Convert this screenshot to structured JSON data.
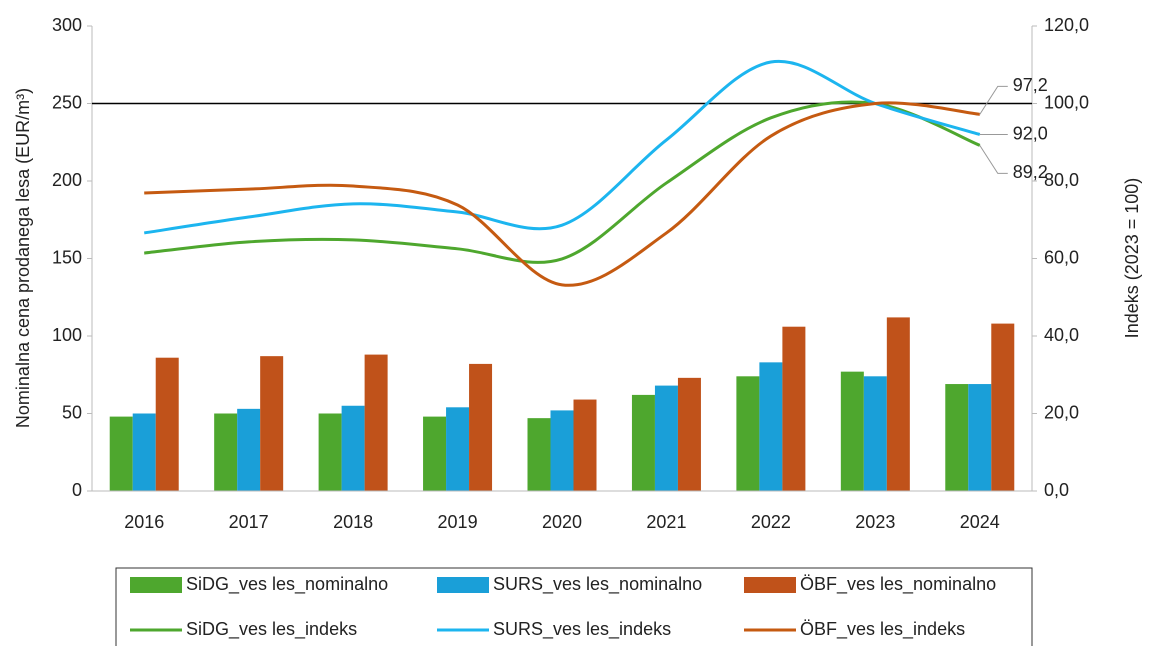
{
  "chart_data": {
    "type": "bar_line",
    "y_label": "Nominalna cena prodanega lesa (EUR/m³)",
    "y2_label": "Indeks (2023 = 100)",
    "categories": [
      "2016",
      "2017",
      "2018",
      "2019",
      "2020",
      "2021",
      "2022",
      "2023",
      "2024"
    ],
    "ylim": [
      0,
      300
    ],
    "yticks": [
      0,
      50,
      100,
      150,
      200,
      250,
      300
    ],
    "y2lim": [
      0,
      120
    ],
    "y2ticks": [
      {
        "value": 0,
        "label": "0,0"
      },
      {
        "value": 20,
        "label": "20,0"
      },
      {
        "value": 40,
        "label": "40,0"
      },
      {
        "value": 60,
        "label": "60,0"
      },
      {
        "value": 80,
        "label": "80,0"
      },
      {
        "value": 100,
        "label": "100,0"
      },
      {
        "value": 120,
        "label": "120,0"
      }
    ],
    "hline": 250,
    "series": [
      {
        "name": "SiDG_ves les_nominalno",
        "type": "bar",
        "color": "#4ea72e",
        "values": [
          48,
          50,
          50,
          48,
          47,
          62,
          74,
          77,
          69
        ]
      },
      {
        "name": "SURS_ves les_nominalno",
        "type": "bar",
        "color": "#1a9fd8",
        "values": [
          50,
          53,
          55,
          54,
          52,
          68,
          83,
          74,
          69
        ]
      },
      {
        "name": "ÖBF_ves les_nominalno",
        "type": "bar",
        "color": "#c0521a",
        "values": [
          86,
          87,
          88,
          82,
          59,
          73,
          106,
          112,
          108
        ]
      },
      {
        "name": "SiDG_ves les_indeks",
        "type": "line",
        "axis": "y2",
        "color": "#4ea72e",
        "values": [
          61.4,
          64.3,
          64.8,
          62.5,
          59.9,
          79.5,
          96.3,
          100,
          89.2
        ],
        "value_labels": [
          null,
          null,
          null,
          null,
          null,
          null,
          null,
          null,
          "89,2"
        ]
      },
      {
        "name": "SURS_ves les_indeks",
        "type": "line",
        "axis": "y2",
        "color": "#1cb5ef",
        "values": [
          66.6,
          70.7,
          74.1,
          72,
          68.6,
          90.6,
          110.7,
          100,
          92.0
        ],
        "value_labels": [
          null,
          null,
          null,
          null,
          null,
          null,
          null,
          null,
          "92,0"
        ]
      },
      {
        "name": "ÖBF_ves les_indeks",
        "type": "line",
        "axis": "y2",
        "color": "#c55a11",
        "values": [
          76.9,
          77.9,
          78.7,
          73.8,
          53.2,
          66.6,
          91.6,
          100,
          97.2
        ],
        "value_labels": [
          null,
          null,
          null,
          null,
          null,
          null,
          null,
          null,
          "97,2"
        ]
      }
    ]
  }
}
